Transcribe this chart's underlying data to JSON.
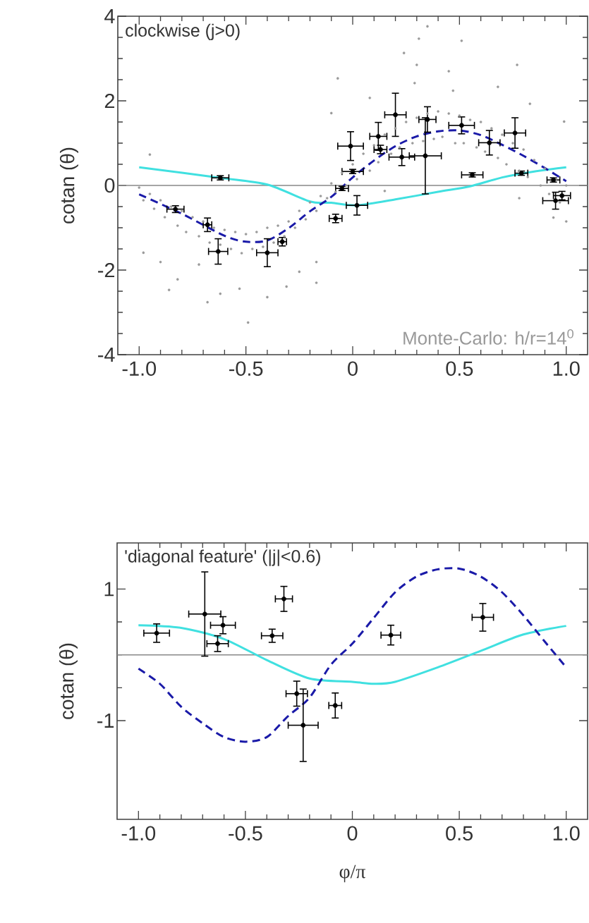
{
  "chart_data": [
    {
      "type": "scatter",
      "marker": "circle",
      "ylabel": "cotan (θ)",
      "annotations": [
        "clockwise (j>0)"
      ],
      "xlim": [
        -1.1,
        1.1
      ],
      "ylim": [
        -4,
        4
      ],
      "xticks": [
        {
          "value": -1,
          "label": "-1.0"
        },
        {
          "value": -0.5,
          "label": "-0.5"
        },
        0,
        0.5,
        {
          "value": 1,
          "label": "1.0"
        }
      ],
      "yticks": [
        -4,
        -2,
        0,
        2,
        4
      ],
      "ref_lines": [
        {
          "axis": "y",
          "value": 0,
          "color": "#888888"
        }
      ],
      "series": [
        {
          "name": "Monte-Carlo: h/r=14$^{0}$",
          "color": "#999999",
          "x": [
            -0.95,
            -0.98,
            -0.86,
            -0.82,
            -0.68,
            -0.62,
            -0.53,
            -0.49,
            -0.4,
            -0.31,
            -0.25,
            -0.17,
            -0.17,
            -0.1,
            -0.9,
            -0.72,
            0.35,
            0.31,
            0.51,
            0.24,
            0.3,
            -0.07,
            0.45,
            0.29,
            0.77,
            0.68,
            0.47,
            0.83,
            0.08,
            0.99,
            0.78,
            0.94,
            1.0,
            0.15,
            -1.0,
            -0.98,
            -0.95,
            -0.93,
            -0.9,
            -0.88,
            -0.85,
            -0.82,
            -0.8,
            -0.78,
            -0.75,
            -0.72,
            -0.7,
            -0.67,
            -0.65,
            -0.62,
            -0.6,
            -0.57,
            -0.55,
            -0.52,
            -0.5,
            -0.47,
            -0.45,
            -0.42,
            -0.4,
            -0.37,
            -0.35,
            -0.32,
            -0.3,
            -0.27,
            -0.25,
            -0.22,
            -0.2,
            -0.17,
            -0.15,
            -0.12,
            -0.1,
            -0.08,
            -0.05,
            -0.03,
            0.0,
            0.02,
            0.05,
            0.08,
            0.1,
            0.12,
            0.15,
            0.18,
            0.2,
            0.22,
            0.25,
            0.28,
            0.3,
            0.33,
            0.35,
            0.38,
            0.4,
            0.42,
            0.45,
            0.48,
            0.5,
            0.52,
            0.55,
            0.58,
            0.6,
            0.62,
            0.65,
            0.68,
            0.7,
            0.72,
            0.75,
            0.78,
            0.8,
            0.82,
            0.85,
            0.88,
            0.9,
            0.92,
            0.95,
            0.97,
            1.0
          ],
          "values": [
            0.73,
            -1.59,
            -2.47,
            -2.22,
            -2.76,
            -2.56,
            -2.44,
            -3.24,
            -2.64,
            -2.39,
            -2.04,
            -2.3,
            -1.81,
            1.71,
            -1.81,
            -1.87,
            3.76,
            3.47,
            3.42,
            3.13,
            2.85,
            2.53,
            2.7,
            2.42,
            2.85,
            2.33,
            2.24,
            1.93,
            2.07,
            1.51,
            -0.3,
            -0.76,
            -0.85,
            -0.13,
            -0.05,
            -0.35,
            -0.2,
            -0.55,
            -0.35,
            -0.75,
            -0.5,
            -0.95,
            -0.6,
            -1.1,
            -0.75,
            -1.2,
            -0.85,
            -1.35,
            -1.0,
            -1.4,
            -1.05,
            -1.5,
            -1.1,
            -1.6,
            -1.15,
            -1.5,
            -1.1,
            -1.45,
            -1.0,
            -1.35,
            -0.95,
            -1.2,
            -0.85,
            -1.0,
            -0.6,
            -0.8,
            -0.4,
            -0.6,
            -0.25,
            -0.3,
            0.05,
            -0.15,
            0.3,
            0.0,
            0.5,
            0.15,
            0.75,
            0.35,
            0.95,
            0.55,
            1.2,
            0.75,
            1.35,
            0.9,
            1.5,
            1.0,
            1.6,
            1.05,
            1.7,
            1.1,
            1.75,
            1.15,
            1.7,
            1.0,
            1.65,
            1.0,
            1.55,
            0.9,
            1.5,
            0.8,
            1.35,
            0.65,
            1.2,
            0.5,
            1.0,
            0.35,
            0.85,
            0.2,
            0.6,
            0.0,
            0.4,
            -0.2,
            0.15,
            -0.4,
            0.0
          ]
        },
        {
          "type": "line",
          "marker": "none",
          "color": "#40e0e0",
          "line_style": "solid",
          "x": [
            -1.0,
            -0.62,
            -0.4,
            -0.2,
            -0.1,
            0.02,
            0.2,
            0.4,
            0.55,
            0.7,
            0.85,
            1.0
          ],
          "values": [
            0.43,
            0.18,
            0.02,
            -0.38,
            -0.41,
            -0.47,
            -0.33,
            -0.15,
            -0.02,
            0.19,
            0.33,
            0.43
          ]
        },
        {
          "type": "line",
          "marker": "none",
          "color": "#1a1aa8",
          "line_style": "dashed",
          "x": [
            -1.0,
            -0.8,
            -0.6,
            -0.5,
            -0.4,
            -0.3,
            -0.2,
            -0.1,
            0.0,
            0.1,
            0.2,
            0.3,
            0.4,
            0.5,
            0.6,
            0.7,
            0.8,
            0.9,
            1.0
          ],
          "values": [
            -0.21,
            -0.67,
            -1.19,
            -1.33,
            -1.3,
            -1.01,
            -0.61,
            -0.27,
            0.19,
            0.59,
            0.93,
            1.16,
            1.28,
            1.3,
            1.19,
            0.96,
            0.7,
            0.41,
            0.1
          ]
        },
        {
          "color": "#000000",
          "x": [
            -0.62,
            -0.83,
            -0.68,
            -0.63,
            -0.4,
            -0.33,
            -0.08,
            -0.05,
            0.02,
            0.0,
            -0.01,
            0.12,
            0.13,
            0.2,
            0.23,
            0.35,
            0.34,
            0.51,
            0.56,
            0.64,
            0.76,
            0.79,
            0.94,
            0.95,
            0.98
          ],
          "values": [
            0.18,
            -0.56,
            -0.93,
            -1.56,
            -1.59,
            -1.33,
            -0.78,
            -0.07,
            -0.47,
            0.33,
            0.93,
            1.16,
            0.85,
            1.67,
            0.67,
            1.56,
            0.7,
            1.42,
            0.25,
            1.01,
            1.24,
            0.29,
            0.13,
            -0.36,
            -0.24
          ],
          "errors": [
            0.05,
            0.08,
            0.16,
            0.3,
            0.33,
            0.1,
            0.1,
            0.05,
            0.23,
            0.05,
            0.34,
            0.33,
            0.1,
            0.51,
            0.2,
            0.3,
            0.9,
            0.2,
            0.05,
            0.29,
            0.36,
            0.05,
            0.05,
            0.2,
            0.1
          ],
          "xerrors": [
            0.04,
            0.04,
            0.02,
            0.045,
            0.05,
            0.02,
            0.03,
            0.03,
            0.05,
            0.05,
            0.06,
            0.04,
            0.03,
            0.05,
            0.06,
            0.04,
            0.075,
            0.06,
            0.05,
            0.05,
            0.05,
            0.03,
            0.03,
            0.06,
            0.04
          ]
        }
      ]
    },
    {
      "type": "scatter",
      "marker": "circle",
      "xlabel": "φ/π",
      "ylabel": "cotan (θ)",
      "annotations": [
        "'diagonal feature' (|j|<0.6)"
      ],
      "xlim": [
        -1.1,
        1.1
      ],
      "ylim": [
        -2.5,
        1.7
      ],
      "xticks": [
        {
          "value": -1,
          "label": "-1.0"
        },
        {
          "value": -0.5,
          "label": "-0.5"
        },
        0,
        0.5,
        {
          "value": 1,
          "label": "1.0"
        }
      ],
      "yticks": [
        -1,
        1
      ],
      "ref_lines": [
        {
          "axis": "y",
          "value": 0,
          "color": "#888888"
        }
      ],
      "series": [
        {
          "type": "line",
          "marker": "none",
          "color": "#40e0e0",
          "line_style": "solid",
          "x": [
            -1.0,
            -0.8,
            -0.6,
            -0.4,
            -0.2,
            0.0,
            0.1,
            0.2,
            0.4,
            0.6,
            0.8,
            1.0
          ],
          "values": [
            0.45,
            0.41,
            0.24,
            -0.08,
            -0.36,
            -0.41,
            -0.44,
            -0.41,
            -0.19,
            0.06,
            0.31,
            0.44
          ]
        },
        {
          "type": "line",
          "marker": "none",
          "color": "#1a1aa8",
          "line_style": "dashed",
          "x": [
            -1.0,
            -0.9,
            -0.8,
            -0.7,
            -0.6,
            -0.5,
            -0.4,
            -0.3,
            -0.2,
            -0.1,
            0.0,
            0.1,
            0.2,
            0.3,
            0.4,
            0.5,
            0.6,
            0.7,
            0.8,
            0.9,
            1.0
          ],
          "values": [
            -0.21,
            -0.44,
            -0.79,
            -1.04,
            -1.25,
            -1.32,
            -1.25,
            -0.93,
            -0.65,
            -0.15,
            0.17,
            0.56,
            0.95,
            1.19,
            1.3,
            1.31,
            1.19,
            0.95,
            0.6,
            0.2,
            -0.19
          ]
        },
        {
          "color": "#000000",
          "x": [
            -0.915,
            -0.69,
            -0.605,
            -0.63,
            -0.375,
            -0.32,
            -0.26,
            -0.23,
            -0.08,
            0.18,
            0.61
          ],
          "values": [
            0.33,
            0.62,
            0.45,
            0.17,
            0.29,
            0.85,
            -0.59,
            -1.07,
            -0.77,
            0.3,
            0.57
          ],
          "errors": [
            0.14,
            0.64,
            0.13,
            0.12,
            0.1,
            0.19,
            0.19,
            0.55,
            0.19,
            0.15,
            0.21
          ],
          "xerrors": [
            0.06,
            0.075,
            0.058,
            0.05,
            0.05,
            0.04,
            0.05,
            0.07,
            0.03,
            0.046,
            0.05
          ]
        }
      ]
    }
  ]
}
